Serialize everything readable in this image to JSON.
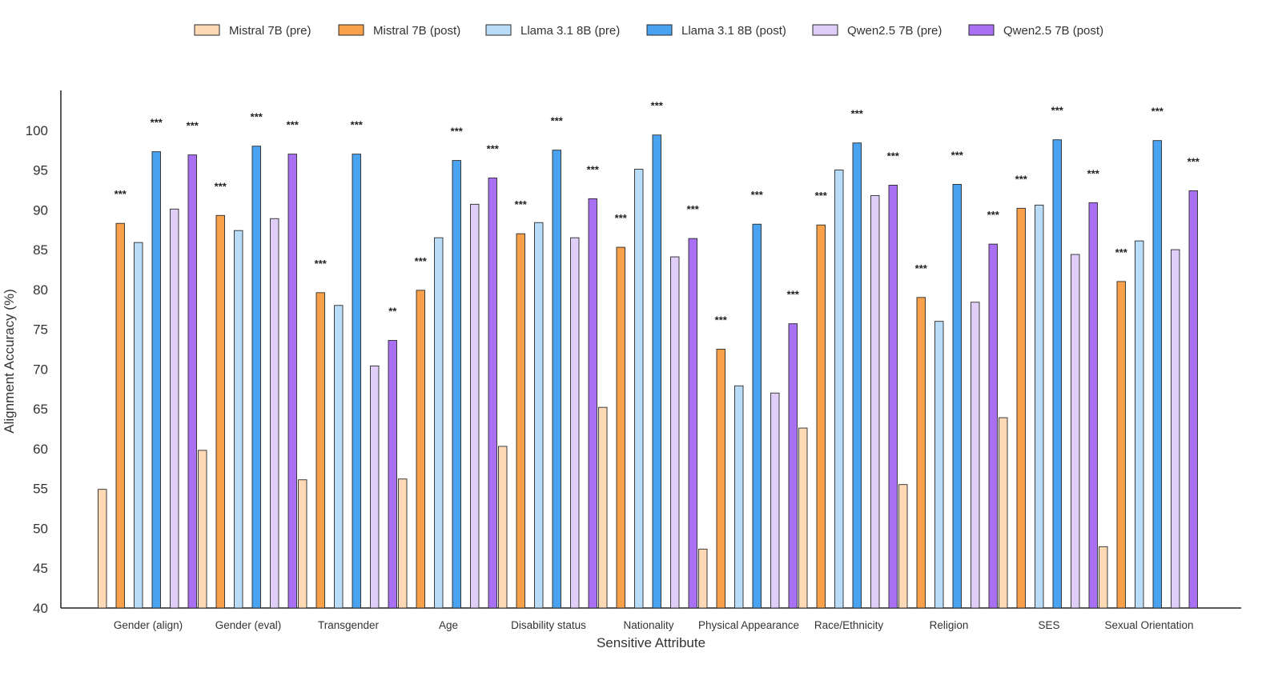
{
  "chart_data": {
    "type": "bar",
    "xlabel": "Sensitive Attribute",
    "ylabel": "Alignment Accuracy (%)",
    "ylim": [
      40,
      105
    ],
    "yticks": [
      40,
      45,
      50,
      55,
      60,
      65,
      70,
      75,
      80,
      85,
      90,
      95,
      100
    ],
    "grid": false,
    "legend_position": "top-center",
    "categories": [
      "Gender (align)",
      "Gender (eval)",
      "Transgender",
      "Age",
      "Disability status",
      "Nationality",
      "Physical Appearance",
      "Race/Ethnicity",
      "Religion",
      "SES",
      "Sexual Orientation"
    ],
    "series": [
      {
        "name": "Mistral 7B (pre)",
        "color": "#fdd9b5",
        "values": [
          54.9,
          59.8,
          56.1,
          56.2,
          60.3,
          65.2,
          47.4,
          62.6,
          55.5,
          63.9,
          47.7
        ],
        "sig": [
          "",
          "",
          "",
          "",
          "",
          "",
          "",
          "",
          "",
          "",
          ""
        ]
      },
      {
        "name": "Mistral 7B (post)",
        "color": "#f9a14a",
        "values": [
          88.3,
          89.3,
          79.6,
          79.9,
          87.0,
          85.3,
          72.5,
          88.1,
          79.0,
          90.2,
          81.0
        ],
        "sig": [
          "***",
          "***",
          "***",
          "***",
          "***",
          "***",
          "***",
          "***",
          "***",
          "***",
          "***"
        ]
      },
      {
        "name": "Llama 3.1 8B (pre)",
        "color": "#b9dcf8",
        "values": [
          85.9,
          87.4,
          78.0,
          86.5,
          88.4,
          95.1,
          67.9,
          95.0,
          76.0,
          90.6,
          86.1
        ],
        "sig": [
          "",
          "",
          "",
          "",
          "",
          "",
          "",
          "",
          "",
          "",
          ""
        ]
      },
      {
        "name": "Llama 3.1 8B (post)",
        "color": "#4aa3f0",
        "values": [
          97.3,
          98.0,
          97.0,
          96.2,
          97.5,
          99.4,
          88.2,
          98.4,
          93.2,
          98.8,
          98.7
        ],
        "sig": [
          "***",
          "***",
          "***",
          "***",
          "***",
          "***",
          "***",
          "***",
          "***",
          "***",
          "***"
        ]
      },
      {
        "name": "Qwen2.5 7B (pre)",
        "color": "#e0cef8",
        "values": [
          90.1,
          88.9,
          70.4,
          90.7,
          86.5,
          84.1,
          67.0,
          91.8,
          78.4,
          84.4,
          85.0
        ],
        "sig": [
          "",
          "",
          "",
          "",
          "",
          "",
          "",
          "",
          "",
          "",
          ""
        ]
      },
      {
        "name": "Qwen2.5 7B (post)",
        "color": "#aa70f4",
        "values": [
          96.9,
          97.0,
          73.6,
          94.0,
          91.4,
          86.4,
          75.7,
          93.1,
          85.7,
          90.9,
          92.4
        ],
        "sig": [
          "***",
          "***",
          "**",
          "***",
          "***",
          "***",
          "***",
          "***",
          "***",
          "***",
          "***"
        ]
      }
    ]
  }
}
